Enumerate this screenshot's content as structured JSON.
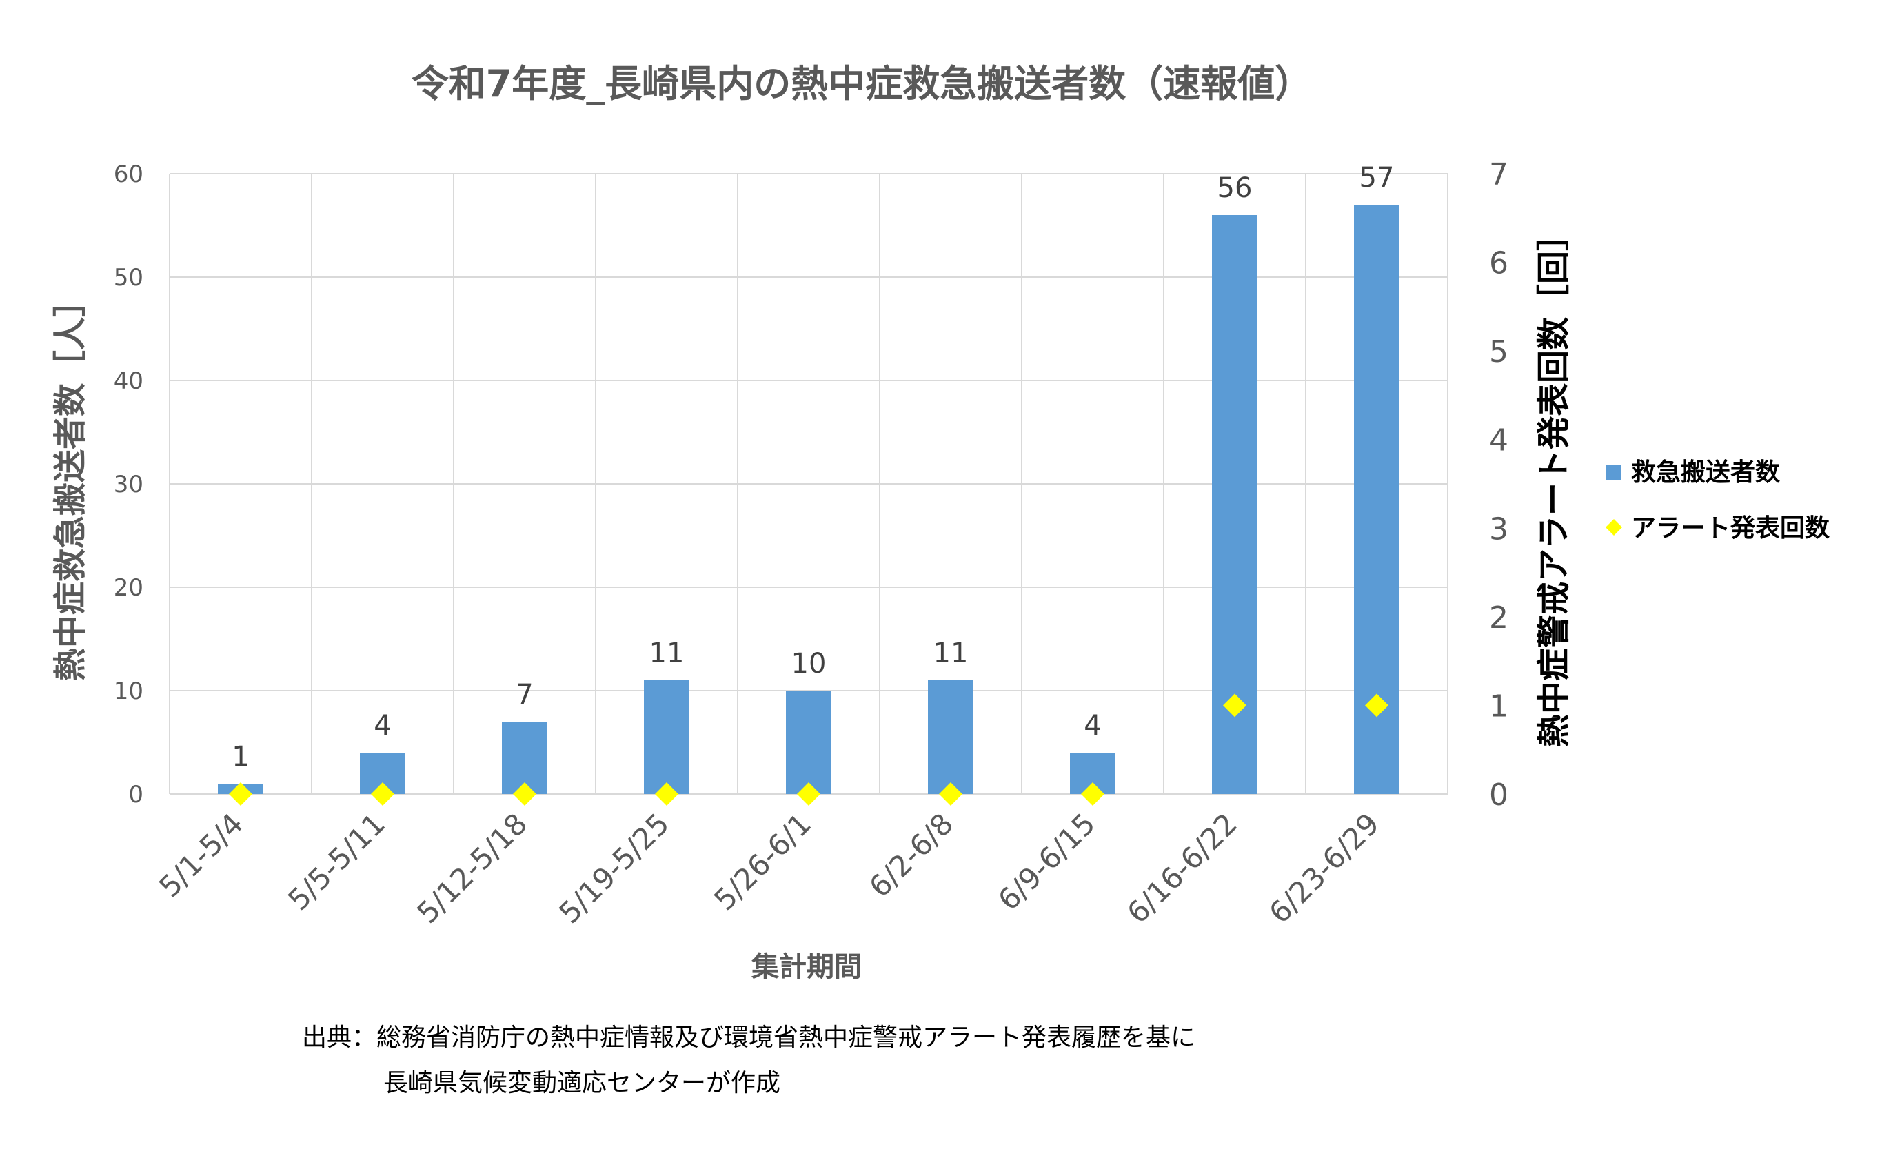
{
  "chart_data": {
    "type": "bar",
    "title": "令和7年度_長崎県内の熱中症救急搬送者数（速報値）",
    "xlabel": "集計期間",
    "ylabel": "熱中症救急搬送者数［人］",
    "y2label": "熱中症警戒アラート発表回数［回］",
    "categories": [
      "5/1-5/4",
      "5/5-5/11",
      "5/12-5/18",
      "5/19-5/25",
      "5/26-6/1",
      "6/2-6/8",
      "6/9-6/15",
      "6/16-6/22",
      "6/23-6/29"
    ],
    "series": [
      {
        "name": "救急搬送者数",
        "type": "bar",
        "axis": "left",
        "color": "#5b9bd5",
        "values": [
          1,
          4,
          7,
          11,
          10,
          11,
          4,
          56,
          57
        ]
      },
      {
        "name": "アラート発表回数",
        "type": "scatter",
        "marker": "diamond",
        "axis": "right",
        "color": "#ffff00",
        "values": [
          0,
          0,
          0,
          0,
          0,
          0,
          0,
          1,
          1
        ]
      }
    ],
    "ylim": [
      0,
      60
    ],
    "yticks": [
      "0",
      "10",
      "20",
      "30",
      "40",
      "50",
      "60"
    ],
    "y2lim": [
      0,
      7
    ],
    "y2ticks": [
      "0",
      "1",
      "2",
      "3",
      "4",
      "5",
      "6",
      "7"
    ],
    "data_labels": [
      "1",
      "4",
      "7",
      "11",
      "10",
      "11",
      "4",
      "56",
      "57"
    ],
    "grid": true,
    "legend_position": "right"
  },
  "source": {
    "line1": "出典：総務省消防庁の熱中症情報及び環境省熱中症警戒アラート発表履歴を基に",
    "line2": "長崎県気候変動適応センターが作成"
  },
  "colors": {
    "bar": "#5b9bd5",
    "marker": "#ffff00",
    "text": "#595959",
    "grid": "#d9d9d9"
  }
}
